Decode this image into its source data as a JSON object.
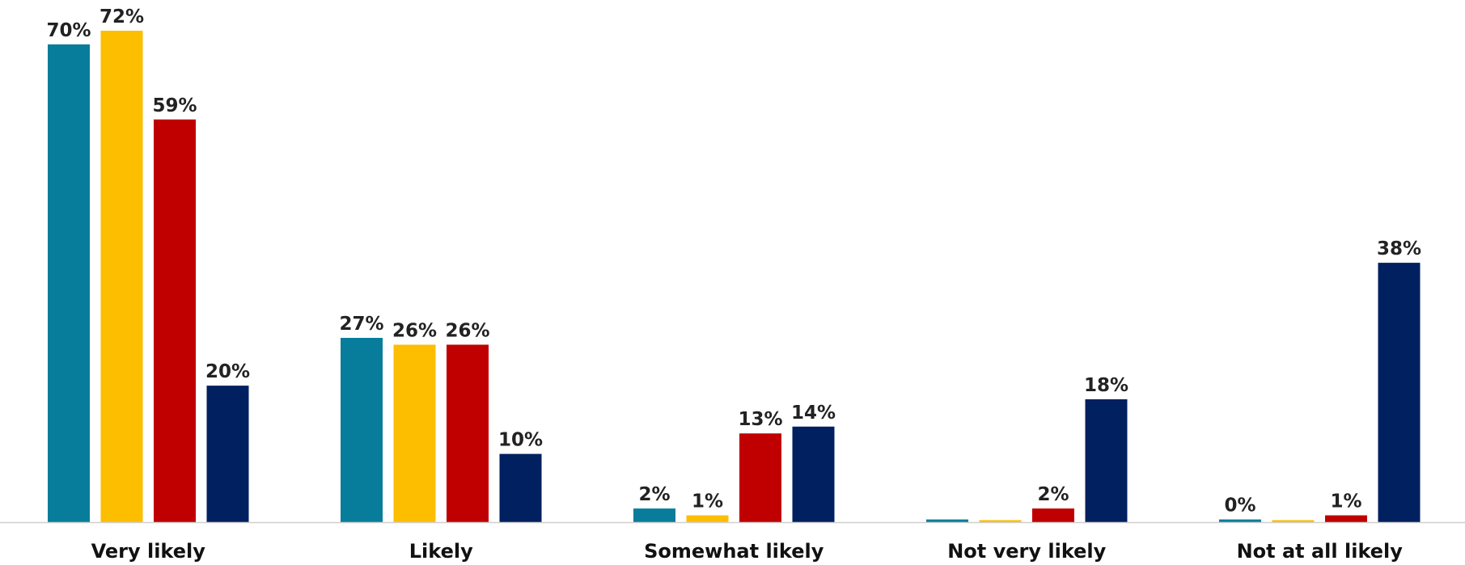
{
  "chart_data": {
    "type": "bar",
    "categories": [
      "Very likely",
      "Likely",
      "Somewhat likely",
      "Not very likely",
      "Not at all likely"
    ],
    "series": [
      {
        "color": "#077d9b",
        "values": [
          70,
          27,
          2,
          0.4,
          0.4
        ],
        "labels": [
          "70%",
          "27%",
          "2%",
          "",
          "0%"
        ]
      },
      {
        "color": "#fdbe00",
        "values": [
          72,
          26,
          1,
          0.3,
          0.3
        ],
        "labels": [
          "72%",
          "26%",
          "1%",
          "",
          ""
        ]
      },
      {
        "color": "#c00000",
        "values": [
          59,
          26,
          13,
          2,
          1
        ],
        "labels": [
          "59%",
          "26%",
          "13%",
          "2%",
          "1%"
        ]
      },
      {
        "color": "#002060",
        "values": [
          20,
          10,
          14,
          18,
          38
        ],
        "labels": [
          "20%",
          "10%",
          "14%",
          "18%",
          "38%"
        ]
      }
    ],
    "ylim": [
      0,
      72
    ],
    "grid": false,
    "legend": "none"
  }
}
